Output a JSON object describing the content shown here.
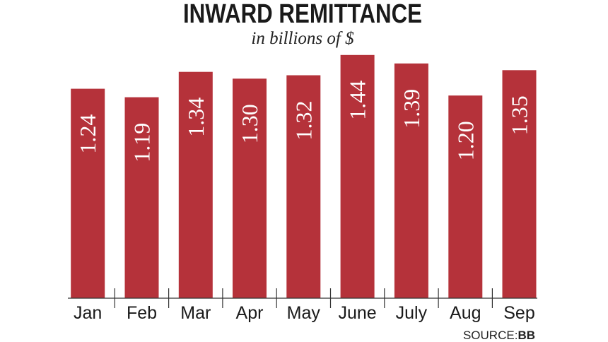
{
  "chart_data": {
    "type": "bar",
    "title": "INWARD REMITTANCE",
    "subtitle": "in billions of $",
    "categories": [
      "Jan",
      "Feb",
      "Mar",
      "Apr",
      "May",
      "June",
      "July",
      "Aug",
      "Sep"
    ],
    "values": [
      1.24,
      1.19,
      1.34,
      1.3,
      1.32,
      1.44,
      1.39,
      1.2,
      1.35
    ],
    "value_labels": [
      "1.24",
      "1.19",
      "1.34",
      "1.30",
      "1.32",
      "1.44",
      "1.39",
      "1.20",
      "1.35"
    ],
    "xlabel": "",
    "ylabel": "",
    "grid": false,
    "legend": "none",
    "bar_color": "#b5323a",
    "label_color": "#ffffff",
    "source_prefix": "SOURCE:",
    "source_name": "BB"
  }
}
